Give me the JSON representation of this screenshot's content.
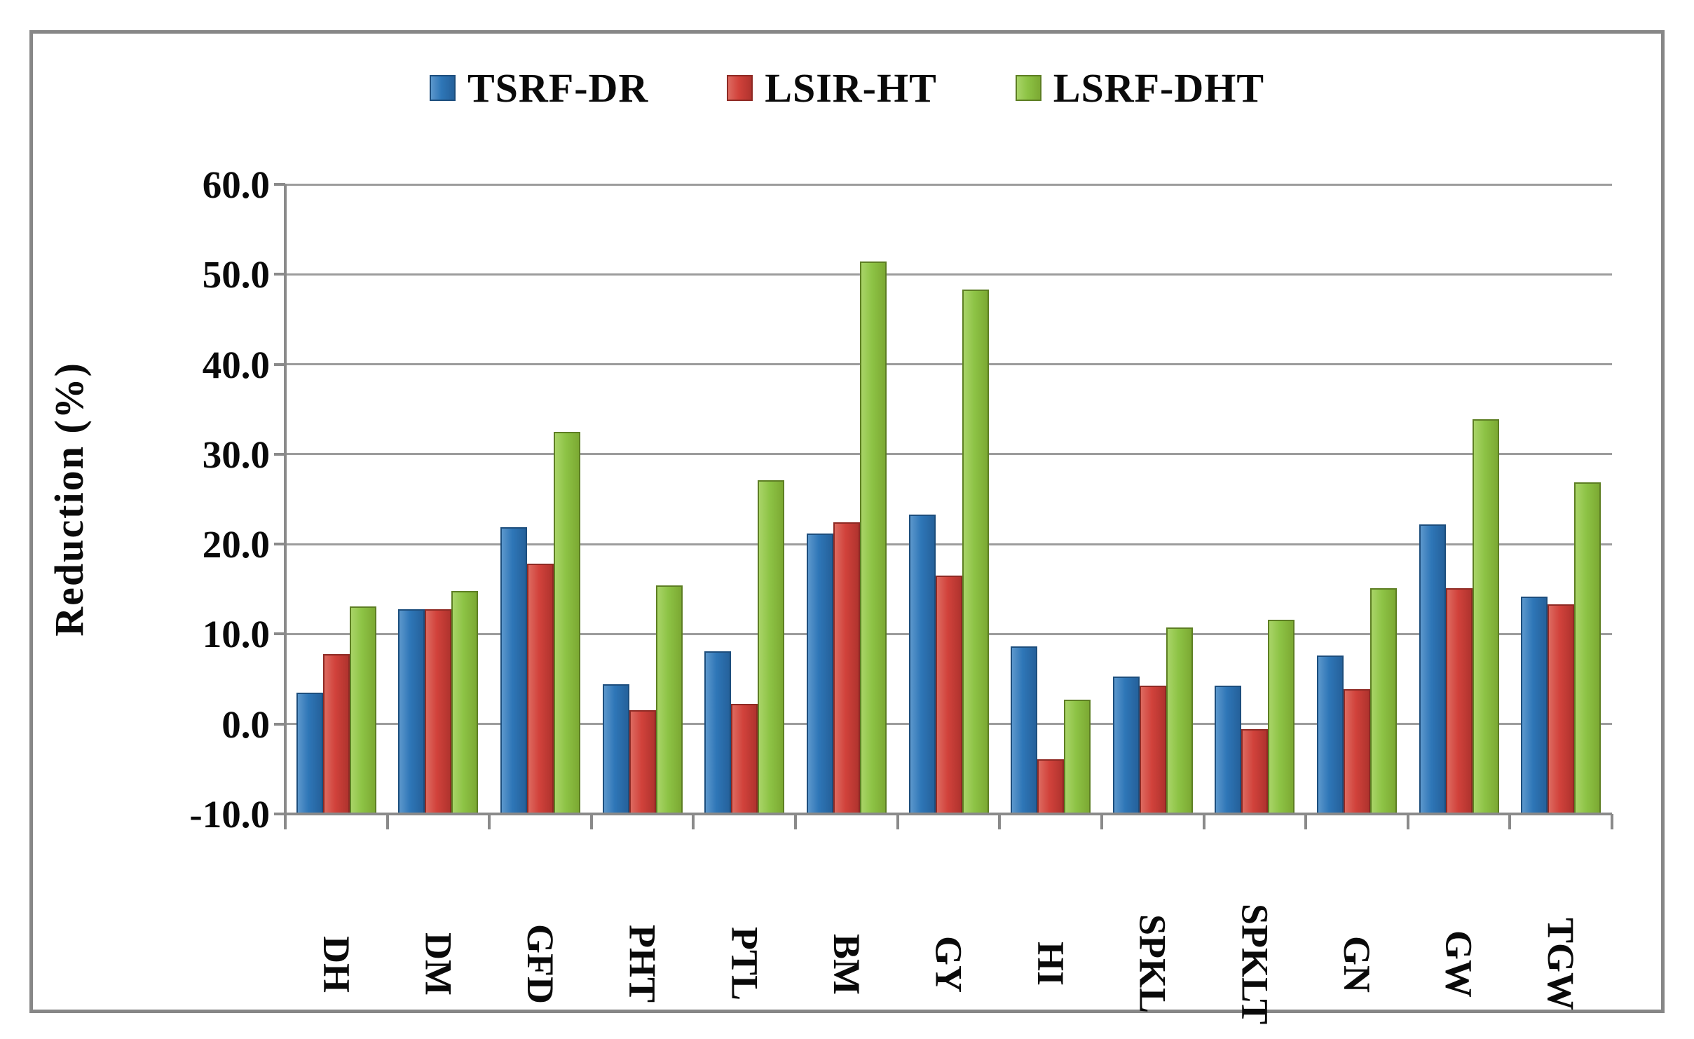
{
  "chart_data": {
    "type": "bar",
    "title": "",
    "ylabel": "Reduction  (%)",
    "xlabel": "",
    "grid": true,
    "legend_position": "top",
    "ylim": [
      -10,
      60
    ],
    "baseline": -10,
    "y_tick_step": 10,
    "y_ticks": [
      {
        "value": 60,
        "label": "60.0"
      },
      {
        "value": 50,
        "label": "50.0"
      },
      {
        "value": 40,
        "label": "40.0"
      },
      {
        "value": 30,
        "label": "30.0"
      },
      {
        "value": 20,
        "label": "20.0"
      },
      {
        "value": 10,
        "label": "10.0"
      },
      {
        "value": 0,
        "label": "0.0"
      },
      {
        "value": -10,
        "label": "-10.0"
      }
    ],
    "categories": [
      "DH",
      "DM",
      "GFD",
      "PHT",
      "PTL",
      "BM",
      "GY",
      "HI",
      "SPKL",
      "SPKLT",
      "GN",
      "GW",
      "TGW"
    ],
    "series": [
      {
        "name": "TSRF-DR",
        "fill": "#2E76B7",
        "fill_light": "#5C97CC",
        "fill_dark": "#25619B",
        "border": "#1D4E7D",
        "values": [
          3.5,
          12.8,
          21.9,
          4.4,
          8.1,
          21.2,
          23.3,
          8.6,
          5.3,
          4.3,
          7.6,
          22.2,
          14.2
        ]
      },
      {
        "name": "LSIR-HT",
        "fill": "#D1423B",
        "fill_light": "#DD6A60",
        "fill_dark": "#B0332E",
        "border": "#8E2A24",
        "values": [
          7.8,
          12.8,
          17.8,
          1.5,
          2.2,
          22.4,
          16.5,
          -3.9,
          4.3,
          -0.6,
          3.9,
          15.1,
          13.3
        ]
      },
      {
        "name": "LSRF-DHT",
        "fill": "#8DC345",
        "fill_light": "#A9D468",
        "fill_dark": "#7CA933",
        "border": "#5D7E23",
        "values": [
          13.1,
          14.8,
          32.5,
          15.4,
          27.1,
          51.4,
          48.3,
          2.7,
          10.7,
          11.6,
          15.1,
          33.9,
          26.9
        ]
      }
    ],
    "colors": {
      "gridline": "#9c9c9c",
      "axis": "#8a8a8a",
      "frame_border": "#878787",
      "text": "#0a0a0a",
      "background": "#ffffff"
    }
  }
}
